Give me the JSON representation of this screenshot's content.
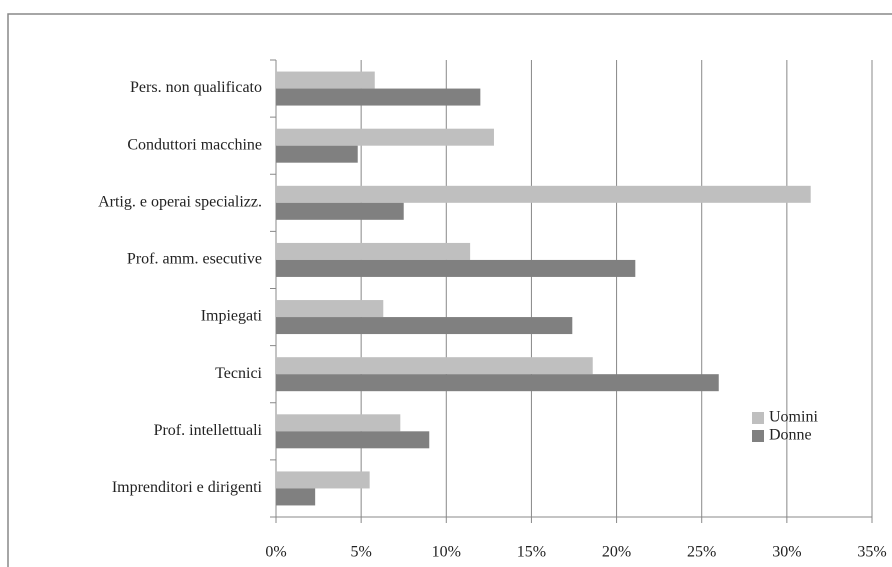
{
  "chart_data": {
    "type": "hbar",
    "categories": [
      "Pers. non qualificato",
      "Conduttori macchine",
      "Artig. e operai specializz.",
      "Prof. amm. esecutive",
      "Impiegati",
      "Tecnici",
      "Prof. intellettuali",
      "Imprenditori e dirigenti"
    ],
    "series": [
      {
        "name": "Uomini",
        "color": "#bfbfbf",
        "values": [
          5.8,
          12.8,
          31.4,
          11.4,
          6.3,
          18.6,
          7.3,
          5.5
        ]
      },
      {
        "name": "Donne",
        "color": "#808080",
        "values": [
          12.0,
          4.8,
          7.5,
          21.1,
          17.4,
          26.0,
          9.0,
          2.3
        ]
      }
    ],
    "xlim": [
      0,
      35
    ],
    "xticks": [
      {
        "value": 0,
        "label": "0%"
      },
      {
        "value": 5,
        "label": "5%"
      },
      {
        "value": 10,
        "label": "10%"
      },
      {
        "value": 15,
        "label": "15%"
      },
      {
        "value": 20,
        "label": "20%"
      },
      {
        "value": 25,
        "label": "25%"
      },
      {
        "value": 30,
        "label": "30%"
      },
      {
        "value": 35,
        "label": "35%"
      }
    ],
    "grid": true,
    "legend": "lower right"
  }
}
